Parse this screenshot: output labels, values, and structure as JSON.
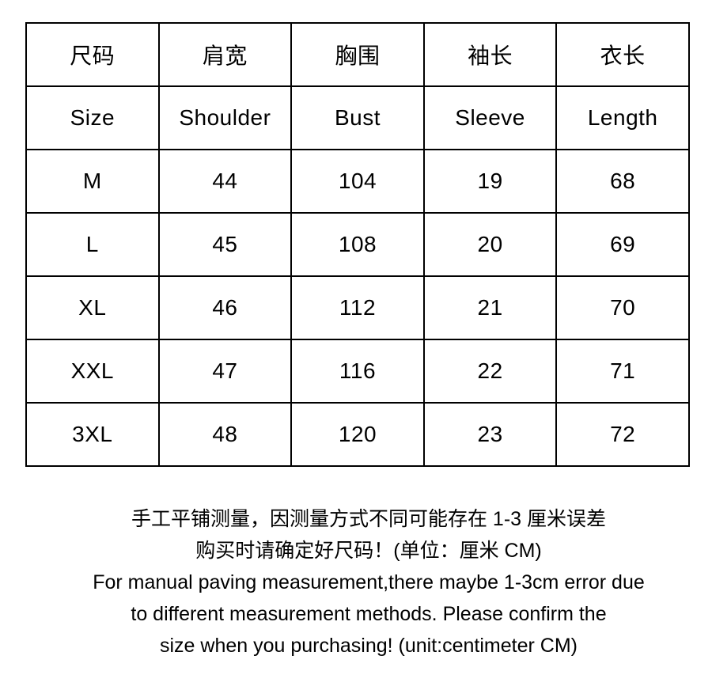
{
  "table": {
    "headers_cn": [
      "尺码",
      "肩宽",
      "胸围",
      "袖长",
      "衣长"
    ],
    "headers_en": [
      "Size",
      "Shoulder",
      "Bust",
      "Sleeve",
      "Length"
    ],
    "rows": [
      [
        "M",
        "44",
        "104",
        "19",
        "68"
      ],
      [
        "L",
        "45",
        "108",
        "20",
        "69"
      ],
      [
        "XL",
        "46",
        "112",
        "21",
        "70"
      ],
      [
        "XXL",
        "47",
        "116",
        "22",
        "71"
      ],
      [
        "3XL",
        "48",
        "120",
        "23",
        "72"
      ]
    ]
  },
  "footer": {
    "lines": [
      "手工平铺测量，因测量方式不同可能存在 1-3 厘米误差",
      "购买时请确定好尺码！(单位：厘米 CM)",
      "For manual paving measurement,there maybe 1-3cm error due",
      "to different measurement methods. Please confirm the",
      "size when you purchasing! (unit:centimeter CM)"
    ]
  },
  "colors": {
    "background": "#ffffff",
    "border": "#000000",
    "text": "#000000"
  }
}
